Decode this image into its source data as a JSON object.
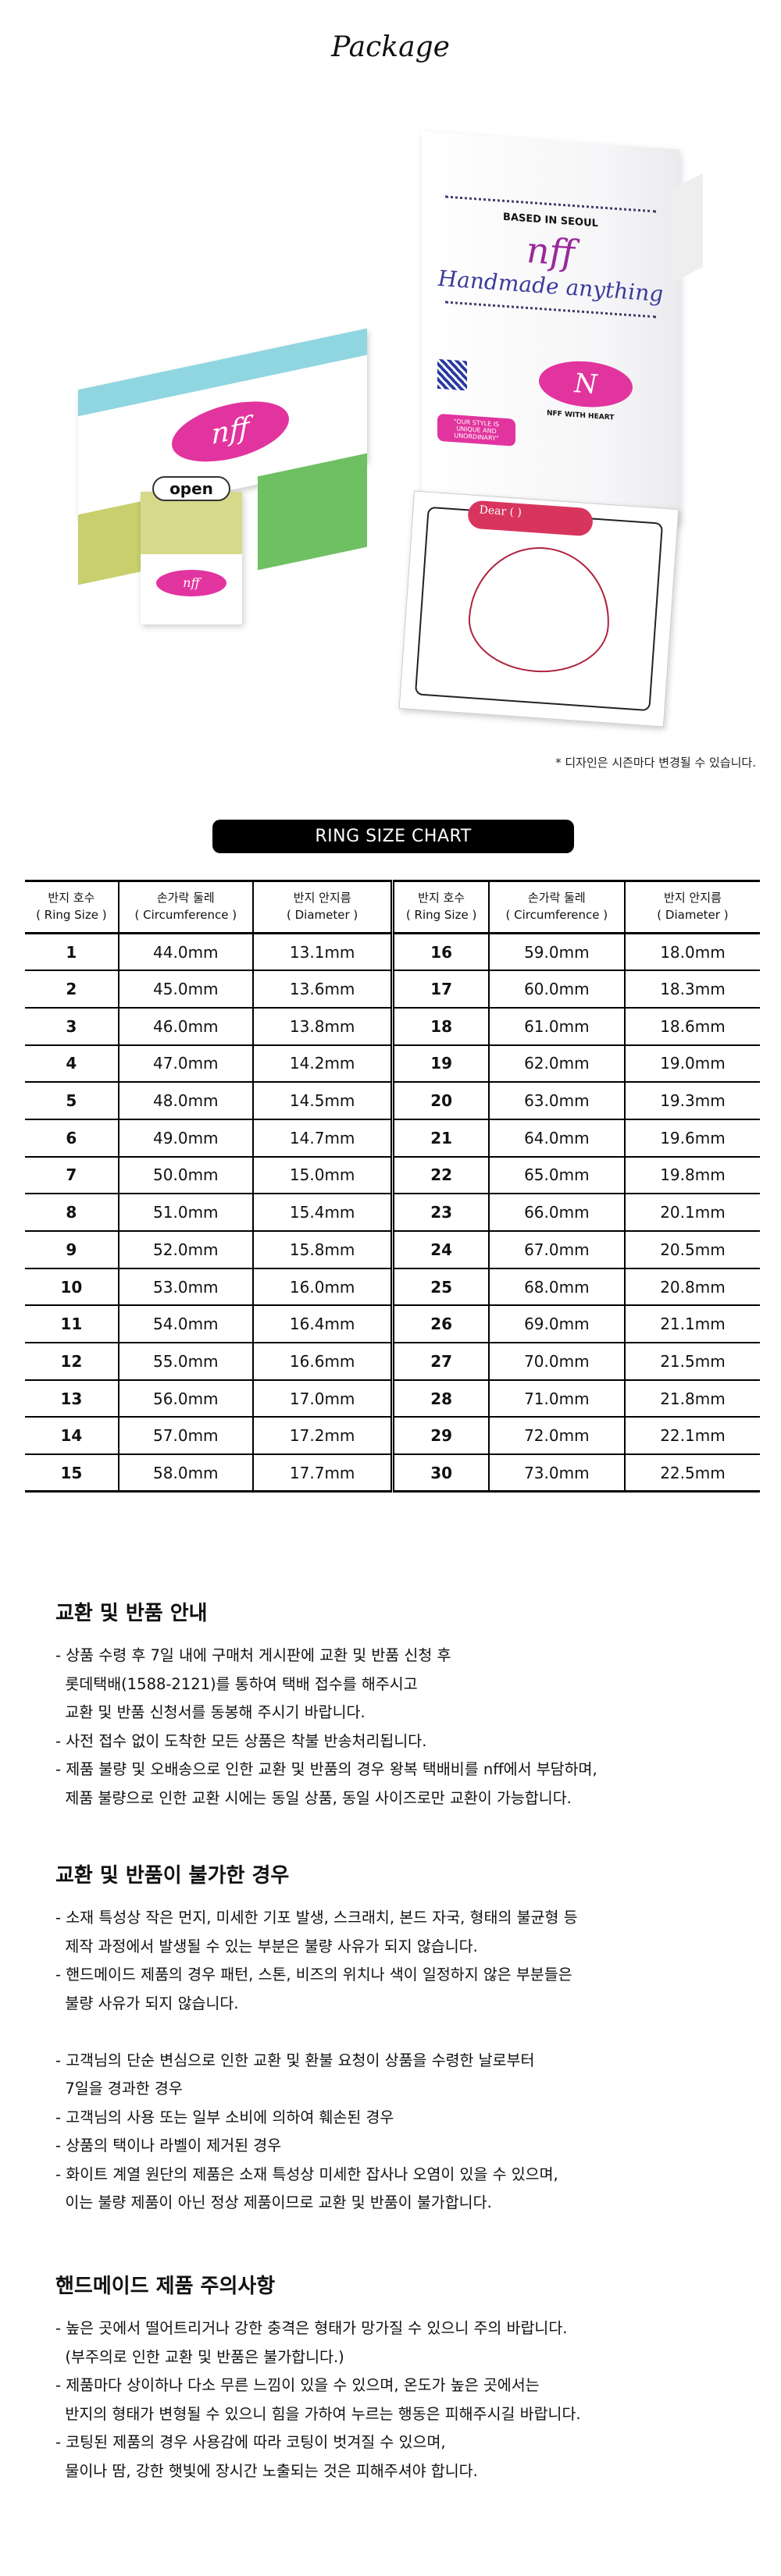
{
  "package": {
    "title": "Package",
    "bag": {
      "tagline": "BASED IN SEOUL",
      "logo": "nff",
      "slogan": "Handmade anything",
      "badge": "NFF WITH HEART",
      "quote": "\"OUR STYLE IS UNIQUE AND UNORDINARY\"",
      "monogram": "N"
    },
    "box": {
      "logo": "nff",
      "open_label": "open"
    },
    "card": {
      "dear": "Dear (        )"
    },
    "note": "* 디자인은 시즌마다 변경될 수 있습니다."
  },
  "chart": {
    "title": "RING SIZE CHART",
    "headers": [
      {
        "ko": "반지 호수",
        "en": "( Ring Size )"
      },
      {
        "ko": "손가락 둘레",
        "en": "( Circumference )"
      },
      {
        "ko": "반지 안지름",
        "en": "( Diameter )"
      },
      {
        "ko": "반지 호수",
        "en": "( Ring Size )"
      },
      {
        "ko": "손가락 둘레",
        "en": "( Circumference )"
      },
      {
        "ko": "반지 안지름",
        "en": "( Diameter )"
      }
    ],
    "rows": [
      [
        "1",
        "44.0mm",
        "13.1mm",
        "16",
        "59.0mm",
        "18.0mm"
      ],
      [
        "2",
        "45.0mm",
        "13.6mm",
        "17",
        "60.0mm",
        "18.3mm"
      ],
      [
        "3",
        "46.0mm",
        "13.8mm",
        "18",
        "61.0mm",
        "18.6mm"
      ],
      [
        "4",
        "47.0mm",
        "14.2mm",
        "19",
        "62.0mm",
        "19.0mm"
      ],
      [
        "5",
        "48.0mm",
        "14.5mm",
        "20",
        "63.0mm",
        "19.3mm"
      ],
      [
        "6",
        "49.0mm",
        "14.7mm",
        "21",
        "64.0mm",
        "19.6mm"
      ],
      [
        "7",
        "50.0mm",
        "15.0mm",
        "22",
        "65.0mm",
        "19.8mm"
      ],
      [
        "8",
        "51.0mm",
        "15.4mm",
        "23",
        "66.0mm",
        "20.1mm"
      ],
      [
        "9",
        "52.0mm",
        "15.8mm",
        "24",
        "67.0mm",
        "20.5mm"
      ],
      [
        "10",
        "53.0mm",
        "16.0mm",
        "25",
        "68.0mm",
        "20.8mm"
      ],
      [
        "11",
        "54.0mm",
        "16.4mm",
        "26",
        "69.0mm",
        "21.1mm"
      ],
      [
        "12",
        "55.0mm",
        "16.6mm",
        "27",
        "70.0mm",
        "21.5mm"
      ],
      [
        "13",
        "56.0mm",
        "17.0mm",
        "28",
        "71.0mm",
        "21.8mm"
      ],
      [
        "14",
        "57.0mm",
        "17.2mm",
        "29",
        "72.0mm",
        "22.1mm"
      ],
      [
        "15",
        "58.0mm",
        "17.7mm",
        "30",
        "73.0mm",
        "22.5mm"
      ]
    ]
  },
  "sections": [
    {
      "heading": "교환 및 반품 안내",
      "lines": [
        "- 상품 수령 후 7일 내에 구매처 게시판에 교환 및 반품 신청 후",
        "  롯데택배(1588-2121)를 통하여 택배 접수를 해주시고",
        "  교환 및 반품 신청서를 동봉해 주시기 바랍니다.",
        "- 사전 접수 없이 도착한 모든 상품은 착불 반송처리됩니다.",
        "- 제품 불량 및 오배송으로 인한 교환 및 반품의 경우 왕복 택배비를 nff에서 부담하며,",
        "  제품 불량으로 인한 교환 시에는 동일 상품, 동일 사이즈로만 교환이 가능합니다."
      ]
    },
    {
      "heading": "교환 및 반품이 불가한 경우",
      "lines": [
        "- 소재 특성상 작은 먼지, 미세한 기포 발생, 스크래치, 본드 자국, 형태의 불균형 등",
        "  제작 과정에서 발생될 수 있는 부분은 불량 사유가 되지 않습니다.",
        "- 핸드메이드 제품의 경우 패턴, 스톤, 비즈의 위치나 색이 일정하지 않은 부분들은",
        "  불량 사유가 되지 않습니다.",
        "",
        "- 고객님의 단순 변심으로 인한 교환 및 환불 요청이 상품을 수령한 날로부터",
        "  7일을 경과한 경우",
        "- 고객님의 사용 또는 일부 소비에 의하여 훼손된 경우",
        "- 상품의 택이나 라벨이 제거된 경우",
        "- 화이트 계열 원단의 제품은 소재 특성상 미세한 잡사나 오염이 있을 수 있으며,",
        "  이는 불량 제품이 아닌 정상 제품이므로 교환 및 반품이 불가합니다."
      ]
    },
    {
      "heading": "핸드메이드 제품 주의사항",
      "lines": [
        "- 높은 곳에서 떨어트리거나 강한 충격은 형태가 망가질 수 있으니 주의 바랍니다.",
        "  (부주의로 인한 교환 및 반품은 불가합니다.)",
        "- 제품마다 상이하나 다소 무른 느낌이 있을 수 있으며, 온도가 높은 곳에서는",
        "  반지의 형태가 변형될 수 있으니 힘을 가하여 누르는 행동은 피해주시길 바랍니다.",
        "- 코팅된 제품의 경우 사용감에 따라 코팅이 벗겨질 수 있으며,",
        "  물이나 땀, 강한 햇빛에 장시간 노출되는 것은 피해주셔야 합니다."
      ]
    }
  ]
}
